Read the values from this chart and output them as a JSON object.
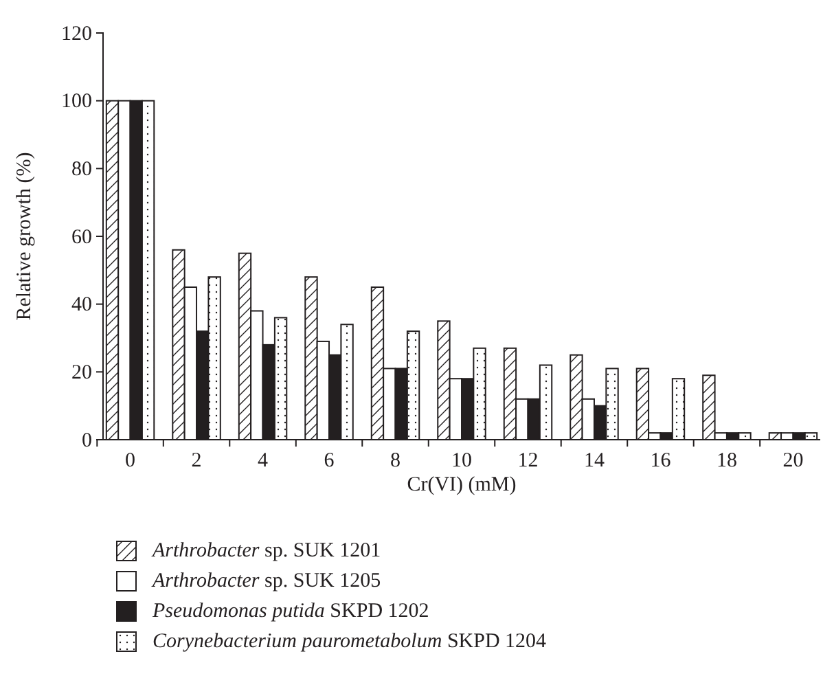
{
  "chart_data": {
    "type": "bar",
    "xlabel": "Cr(VI) (mM)",
    "ylabel": "Relative growth (%)",
    "categories": [
      "0",
      "2",
      "4",
      "6",
      "8",
      "10",
      "12",
      "14",
      "16",
      "18",
      "20"
    ],
    "series": [
      {
        "name": "Arthrobacter sp. SUK 1201",
        "color": "#231f20",
        "values": [
          100,
          56,
          55,
          48,
          45,
          35,
          27,
          25,
          21,
          19,
          2
        ]
      },
      {
        "name": "Arthrobacter sp. SUK 1205",
        "color": "#231f20",
        "values": [
          100,
          45,
          38,
          29,
          21,
          18,
          12,
          12,
          2,
          2,
          2
        ]
      },
      {
        "name": "Pseudomonas putida SKPD 1202",
        "color": "#231f20",
        "values": [
          100,
          32,
          28,
          25,
          21,
          18,
          12,
          10,
          2,
          2,
          2
        ]
      },
      {
        "name": "Corynebacterium paurometabolum SKPD 1204",
        "color": "#231f20",
        "values": [
          100,
          48,
          36,
          34,
          32,
          27,
          22,
          21,
          18,
          2,
          2
        ]
      }
    ],
    "ylim": [
      0,
      120
    ],
    "yticks": [
      0,
      20,
      40,
      60,
      80,
      100,
      120
    ],
    "grid": false,
    "legend": "bottom"
  }
}
